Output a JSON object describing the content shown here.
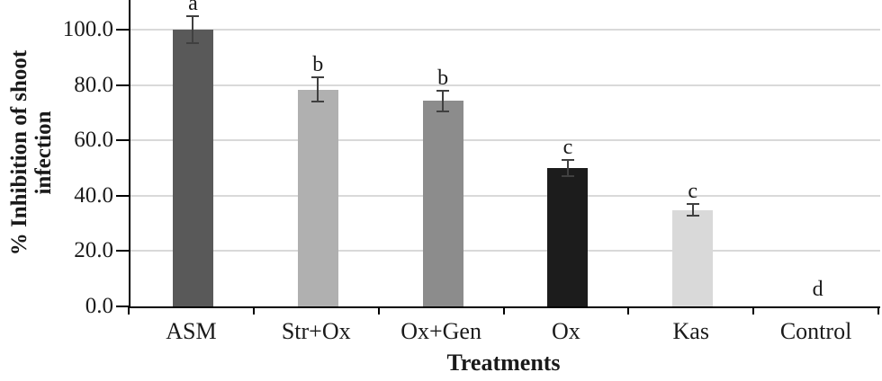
{
  "figure": {
    "background": "#ffffff"
  },
  "chart_data": {
    "type": "bar",
    "title": "",
    "xlabel": "Treatments",
    "ylabel": "% Inhibition of shoot infection",
    "ylabel_lines": [
      "% Inhibition of shoot",
      "infection"
    ],
    "categories": [
      "ASM",
      "Str+Ox",
      "Ox+Gen",
      "Ox",
      "Kas",
      "Control"
    ],
    "values": [
      100.0,
      78.4,
      74.3,
      50.0,
      34.9,
      0.0
    ],
    "errors": [
      4.9,
      4.4,
      3.7,
      2.9,
      2.1,
      0.0
    ],
    "sig_letters": [
      "a",
      "b",
      "b",
      "c",
      "c",
      "d"
    ],
    "bar_colors": [
      "#595959",
      "#b0b0b0",
      "#8c8c8c",
      "#1c1c1c",
      "#d9d9d9",
      "#ffffff"
    ],
    "yticks": [
      0,
      20,
      40,
      60,
      80,
      100
    ],
    "ytick_format": "one_decimal",
    "ylim": [
      0,
      110.7
    ],
    "grid": true,
    "grid_color": "#d9d9d9",
    "axis_color": "#000000",
    "error_bar_color": "#404040",
    "text_color": "#1a1a1a",
    "legend": false
  }
}
